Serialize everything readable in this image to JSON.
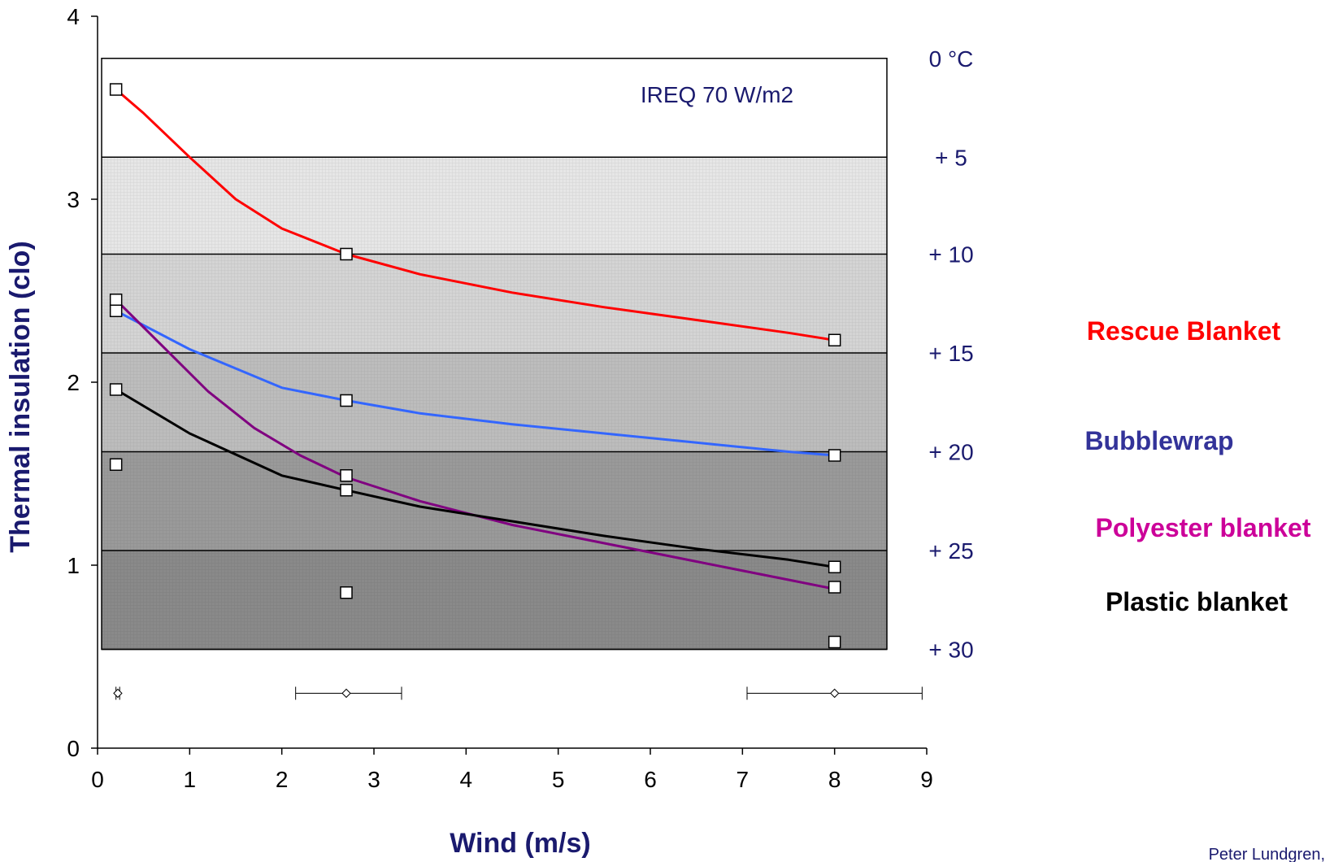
{
  "chart_data": {
    "type": "line",
    "xlabel": "Wind (m/s)",
    "ylabel": "Thermal insulation (clo)",
    "xlim": [
      0,
      9
    ],
    "ylim": [
      0,
      4
    ],
    "x_ticks": [
      "0",
      "1",
      "2",
      "3",
      "4",
      "5",
      "6",
      "7",
      "8",
      "9"
    ],
    "y_ticks": [
      "0",
      "1",
      "2",
      "3",
      "4"
    ],
    "annotation": "IREQ 70 W/m2",
    "credit": "Peter Lundgren,",
    "temperature_bands": {
      "labels": [
        "0 °C",
        "+ 5",
        "+ 10",
        "+ 15",
        "+ 20",
        "+ 25",
        "+ 30"
      ],
      "boundaries_clo": [
        3.77,
        3.23,
        2.7,
        2.16,
        1.62,
        1.08,
        0.54
      ],
      "fills": [
        "#ffffff",
        "#e6e6e6",
        "#d4d4d4",
        "#bdbdbd",
        "#9a9a9a",
        "#8a8a8a"
      ]
    },
    "series": [
      {
        "name": "Rescue Blanket",
        "color": "#ff0000",
        "x": [
          0.2,
          0.5,
          1.0,
          1.5,
          2.0,
          2.7,
          3.5,
          4.5,
          5.5,
          6.5,
          7.5,
          8.0
        ],
        "y": [
          3.6,
          3.47,
          3.23,
          3.0,
          2.84,
          2.7,
          2.59,
          2.49,
          2.41,
          2.34,
          2.27,
          2.23
        ]
      },
      {
        "name": "Bubblewrap",
        "color": "#3366ff",
        "x": [
          0.2,
          1.0,
          2.0,
          2.7,
          3.5,
          4.5,
          5.5,
          6.5,
          7.5,
          8.0
        ],
        "y": [
          2.39,
          2.18,
          1.97,
          1.9,
          1.83,
          1.77,
          1.72,
          1.67,
          1.62,
          1.6
        ]
      },
      {
        "name": "Polyester blanket",
        "color": "#800080",
        "x": [
          0.2,
          0.7,
          1.2,
          1.7,
          2.2,
          2.7,
          3.5,
          4.5,
          5.5,
          6.5,
          7.5,
          8.0
        ],
        "y": [
          2.45,
          2.2,
          1.95,
          1.75,
          1.6,
          1.48,
          1.35,
          1.22,
          1.12,
          1.02,
          0.92,
          0.87
        ]
      },
      {
        "name": "Plastic blanket",
        "color": "#000000",
        "x": [
          0.2,
          1.0,
          2.0,
          2.7,
          3.5,
          4.5,
          5.5,
          6.5,
          7.5,
          8.0
        ],
        "y": [
          1.96,
          1.72,
          1.49,
          1.41,
          1.32,
          1.24,
          1.16,
          1.09,
          1.03,
          0.99
        ]
      }
    ],
    "markers": {
      "x": [
        0.2,
        0.2,
        0.2,
        0.2,
        0.2,
        2.7,
        2.7,
        2.7,
        2.7,
        2.7,
        8.0,
        8.0,
        8.0,
        8.0,
        8.0
      ],
      "y": [
        3.6,
        2.45,
        2.39,
        1.96,
        1.55,
        2.7,
        1.9,
        1.49,
        1.41,
        0.85,
        2.23,
        1.6,
        0.99,
        0.88,
        0.58
      ]
    },
    "wind_error_bars": [
      {
        "x": 0.22,
        "y": 0.3,
        "low": 0.2,
        "high": 0.24
      },
      {
        "x": 2.7,
        "y": 0.3,
        "low": 2.15,
        "high": 3.3
      },
      {
        "x": 8.0,
        "y": 0.3,
        "low": 7.05,
        "high": 8.95
      }
    ],
    "legend": [
      {
        "label": "Rescue Blanket",
        "color": "#ff0000"
      },
      {
        "label": "Bubblewrap",
        "color": "#333399"
      },
      {
        "label": "Polyester blanket",
        "color": "#cc0099"
      },
      {
        "label": "Plastic blanket",
        "color": "#000000"
      }
    ]
  }
}
